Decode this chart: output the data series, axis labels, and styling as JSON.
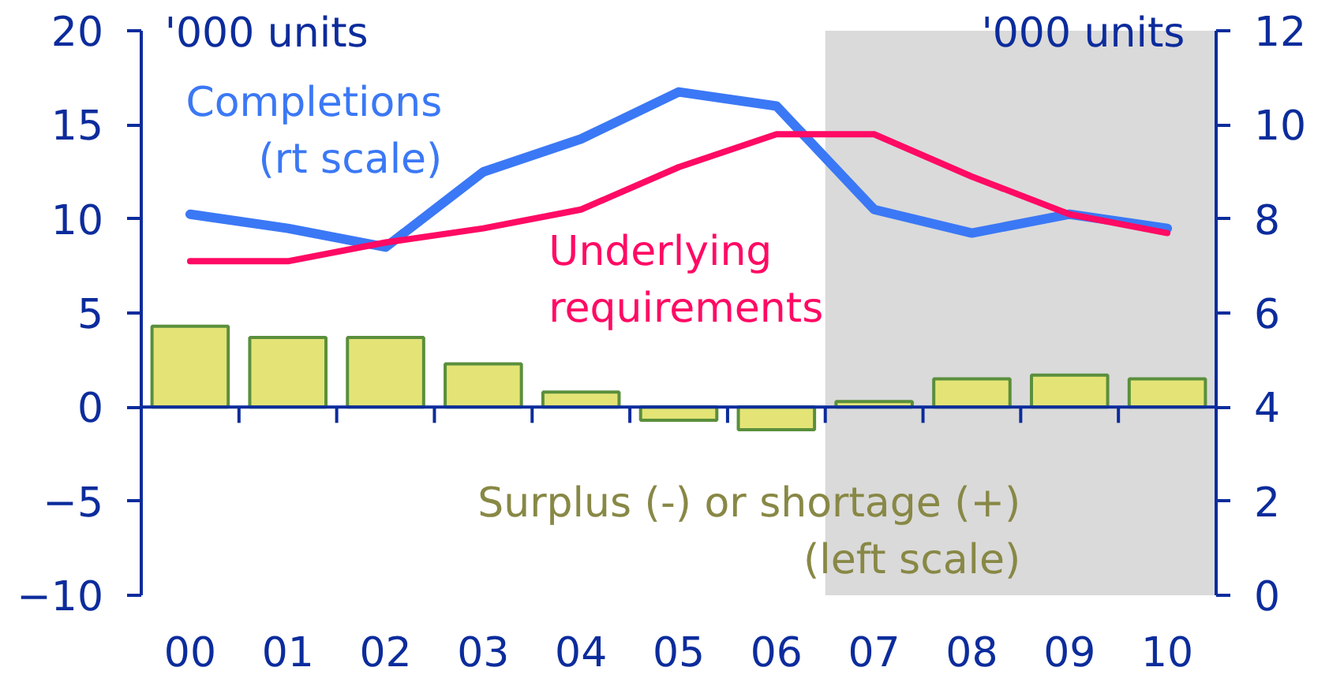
{
  "chart_data": {
    "type": "bar",
    "categories": [
      "00",
      "01",
      "02",
      "03",
      "04",
      "05",
      "06",
      "07",
      "08",
      "09",
      "10"
    ],
    "ylabel": "'000 units",
    "y2label": "'000 units",
    "ylim": [
      -10,
      20
    ],
    "yticks": [
      -10,
      -5,
      0,
      5,
      10,
      15,
      20
    ],
    "y2lim": [
      0,
      12
    ],
    "y2ticks": [
      0,
      2,
      4,
      6,
      8,
      10,
      12
    ],
    "bands": [
      {
        "axis": "x",
        "from": "07",
        "to": "10",
        "color": "#dadada"
      }
    ],
    "ref_lines": [
      {
        "axis": "y",
        "value": 0,
        "color": "#0c2c9c"
      }
    ],
    "series": [
      {
        "name": "Surplus (-) or shortage (+)\n(left scale)",
        "color": "#e4e476",
        "values": [
          4.3,
          3.7,
          3.7,
          2.3,
          0.8,
          -0.7,
          -1.2,
          0.3,
          1.5,
          1.7,
          1.5
        ]
      },
      {
        "name": "Completions\n(rt scale)",
        "type": "line",
        "axis": "y2",
        "color": "#3b78f5",
        "values": [
          8.1,
          7.8,
          7.4,
          9.0,
          9.7,
          10.7,
          10.4,
          8.2,
          7.7,
          8.1,
          7.8
        ]
      },
      {
        "name": "Underlying\nrequirements",
        "type": "line",
        "axis": "y2",
        "color": "#ff0a64",
        "values": [
          7.1,
          7.1,
          7.5,
          7.8,
          8.2,
          9.1,
          9.8,
          9.8,
          8.9,
          8.1,
          7.7
        ]
      }
    ]
  }
}
